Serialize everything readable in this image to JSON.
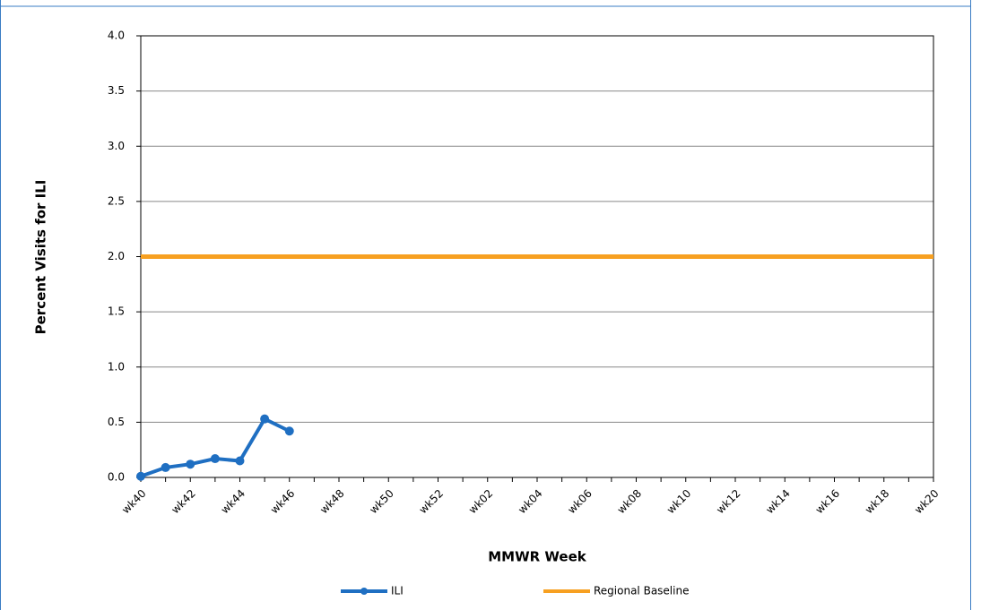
{
  "chart_data": {
    "type": "line",
    "y_label": "Percent Visits for ILI",
    "x_label": "MMWR Week",
    "categories": [
      "wk40",
      null,
      "wk42",
      null,
      "wk44",
      null,
      "wk46",
      null,
      "wk48",
      null,
      "wk50",
      null,
      "wk52",
      null,
      "wk02",
      null,
      "wk04",
      null,
      "wk06",
      null,
      "wk08",
      null,
      "wk10",
      null,
      "wk12",
      null,
      "wk14",
      null,
      "wk16",
      null,
      "wk18",
      null,
      "wk20"
    ],
    "series": [
      {
        "name": "ILI",
        "color": "#1f6fc2",
        "marker": true,
        "values": [
          0.01,
          0.09,
          0.12,
          0.17,
          0.15,
          0.53,
          0.42,
          null,
          null,
          null,
          null,
          null,
          null,
          null,
          null,
          null,
          null,
          null,
          null,
          null,
          null,
          null,
          null,
          null,
          null,
          null,
          null,
          null,
          null,
          null,
          null,
          null,
          null
        ]
      },
      {
        "name": "Regional Baseline",
        "color": "#f7a021",
        "marker": false,
        "values": [
          2,
          2,
          2,
          2,
          2,
          2,
          2,
          2,
          2,
          2,
          2,
          2,
          2,
          2,
          2,
          2,
          2,
          2,
          2,
          2,
          2,
          2,
          2,
          2,
          2,
          2,
          2,
          2,
          2,
          2,
          2,
          2,
          2
        ]
      }
    ],
    "ylim": [
      0,
      4
    ],
    "yticks": [
      {
        "value": 0,
        "label": "0.0"
      },
      {
        "value": 0.5,
        "label": "0.5"
      },
      {
        "value": 1,
        "label": "1.0"
      },
      {
        "value": 1.5,
        "label": "1.5"
      },
      {
        "value": 2,
        "label": "2.0"
      },
      {
        "value": 2.5,
        "label": "2.5"
      },
      {
        "value": 3,
        "label": "3.0"
      },
      {
        "value": 3.5,
        "label": "3.5"
      },
      {
        "value": 4,
        "label": "4.0"
      }
    ],
    "grid": true,
    "legend": "bottom"
  }
}
